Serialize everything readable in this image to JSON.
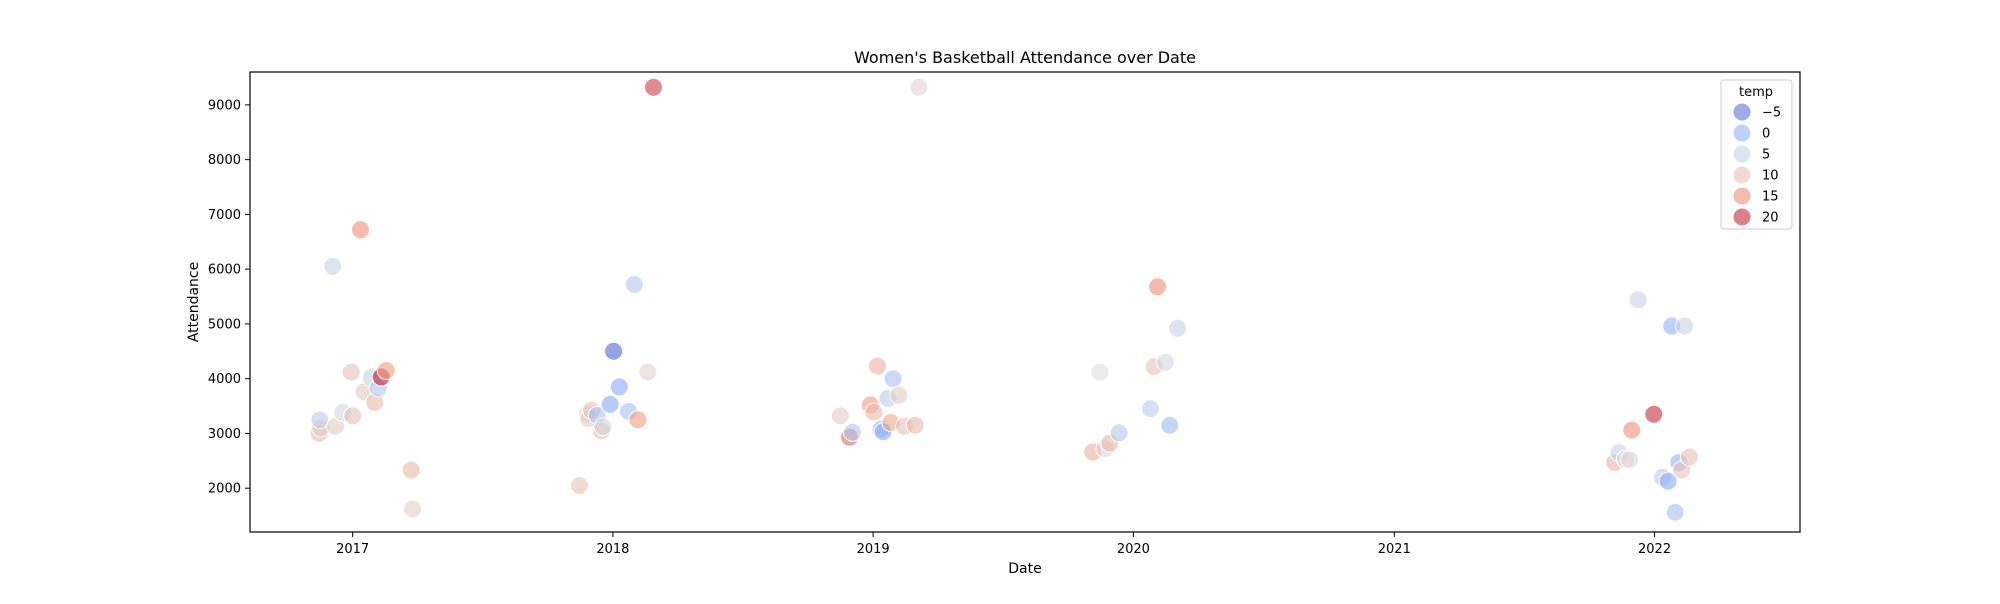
{
  "chart_data": {
    "type": "scatter",
    "title": "Women's Basketball Attendance over Date",
    "xlabel": "Date",
    "ylabel": "Attendance",
    "xlim": [
      "2016-08-10",
      "2022-07-24"
    ],
    "ylim": [
      1200,
      9600
    ],
    "x_ticks": [
      "2017",
      "2018",
      "2019",
      "2020",
      "2021",
      "2022"
    ],
    "y_ticks": [
      2000,
      3000,
      4000,
      5000,
      6000,
      7000,
      8000,
      9000
    ],
    "grid": false,
    "legend": {
      "title": "temp",
      "placement": "top-right",
      "entries": [
        {
          "label": "−5",
          "value": -5
        },
        {
          "label": "0",
          "value": 0
        },
        {
          "label": "5",
          "value": 5
        },
        {
          "label": "10",
          "value": 10
        },
        {
          "label": "15",
          "value": 15
        },
        {
          "label": "20",
          "value": 20
        }
      ]
    },
    "colormap": "coolwarm",
    "hue_range": [
      -8,
      22
    ],
    "points": [
      {
        "date": "2016-11-15",
        "attendance": 3000,
        "temp": 11
      },
      {
        "date": "2016-11-17",
        "attendance": 3100,
        "temp": 9
      },
      {
        "date": "2016-11-16",
        "attendance": 3250,
        "temp": 4
      },
      {
        "date": "2016-12-04",
        "attendance": 6050,
        "temp": 5
      },
      {
        "date": "2016-12-08",
        "attendance": 3130,
        "temp": 9
      },
      {
        "date": "2016-12-18",
        "attendance": 3380,
        "temp": 6
      },
      {
        "date": "2016-12-30",
        "attendance": 4120,
        "temp": 10
      },
      {
        "date": "2017-01-01",
        "attendance": 3320,
        "temp": 10
      },
      {
        "date": "2017-01-12",
        "attendance": 6720,
        "temp": 15
      },
      {
        "date": "2017-01-17",
        "attendance": 3760,
        "temp": 9
      },
      {
        "date": "2017-01-27",
        "attendance": 4020,
        "temp": 5
      },
      {
        "date": "2017-02-01",
        "attendance": 3570,
        "temp": 11
      },
      {
        "date": "2017-02-06",
        "attendance": 3830,
        "temp": 3
      },
      {
        "date": "2017-02-10",
        "attendance": 4030,
        "temp": 21
      },
      {
        "date": "2017-02-17",
        "attendance": 4150,
        "temp": 14
      },
      {
        "date": "2017-03-24",
        "attendance": 2330,
        "temp": 11
      },
      {
        "date": "2017-03-26",
        "attendance": 1620,
        "temp": 9
      },
      {
        "date": "2017-11-15",
        "attendance": 2050,
        "temp": 10
      },
      {
        "date": "2017-11-26",
        "attendance": 3350,
        "temp": 8
      },
      {
        "date": "2017-11-28",
        "attendance": 3270,
        "temp": 9
      },
      {
        "date": "2017-12-02",
        "attendance": 3420,
        "temp": 10
      },
      {
        "date": "2017-12-10",
        "attendance": 3330,
        "temp": 2
      },
      {
        "date": "2017-12-16",
        "attendance": 3050,
        "temp": 11
      },
      {
        "date": "2017-12-18",
        "attendance": 3120,
        "temp": 6
      },
      {
        "date": "2017-12-28",
        "attendance": 3530,
        "temp": -1
      },
      {
        "date": "2018-01-02",
        "attendance": 4500,
        "temp": -6
      },
      {
        "date": "2018-01-10",
        "attendance": 3850,
        "temp": -1
      },
      {
        "date": "2018-01-23",
        "attendance": 3400,
        "temp": 2
      },
      {
        "date": "2018-01-31",
        "attendance": 5720,
        "temp": 3
      },
      {
        "date": "2018-02-05",
        "attendance": 3250,
        "temp": 14
      },
      {
        "date": "2018-02-19",
        "attendance": 4120,
        "temp": 8
      },
      {
        "date": "2018-02-27",
        "attendance": 9320,
        "temp": 19
      },
      {
        "date": "2018-11-16",
        "attendance": 3320,
        "temp": 9
      },
      {
        "date": "2018-11-29",
        "attendance": 2930,
        "temp": 17
      },
      {
        "date": "2018-12-03",
        "attendance": 3020,
        "temp": 3
      },
      {
        "date": "2018-12-28",
        "attendance": 3520,
        "temp": 14
      },
      {
        "date": "2019-01-02",
        "attendance": 3390,
        "temp": 11
      },
      {
        "date": "2019-01-07",
        "attendance": 4230,
        "temp": 12
      },
      {
        "date": "2019-01-12",
        "attendance": 3080,
        "temp": 1
      },
      {
        "date": "2019-01-15",
        "attendance": 3030,
        "temp": -1
      },
      {
        "date": "2019-01-22",
        "attendance": 3640,
        "temp": 4
      },
      {
        "date": "2019-01-26",
        "attendance": 3200,
        "temp": 13
      },
      {
        "date": "2019-01-29",
        "attendance": 4000,
        "temp": 2
      },
      {
        "date": "2019-02-06",
        "attendance": 3700,
        "temp": 9
      },
      {
        "date": "2019-02-14",
        "attendance": 3130,
        "temp": 10
      },
      {
        "date": "2019-03-01",
        "attendance": 3150,
        "temp": 11
      },
      {
        "date": "2019-03-06",
        "attendance": 9320,
        "temp": 8
      },
      {
        "date": "2019-11-05",
        "attendance": 2660,
        "temp": 12
      },
      {
        "date": "2019-11-15",
        "attendance": 4120,
        "temp": 7
      },
      {
        "date": "2019-11-22",
        "attendance": 2720,
        "temp": 8
      },
      {
        "date": "2019-11-29",
        "attendance": 2820,
        "temp": 11
      },
      {
        "date": "2019-12-12",
        "attendance": 3010,
        "temp": 3
      },
      {
        "date": "2020-01-25",
        "attendance": 3450,
        "temp": 4
      },
      {
        "date": "2020-01-30",
        "attendance": 4220,
        "temp": 10
      },
      {
        "date": "2020-02-04",
        "attendance": 5680,
        "temp": 15
      },
      {
        "date": "2020-02-15",
        "attendance": 4300,
        "temp": 6
      },
      {
        "date": "2020-02-21",
        "attendance": 3150,
        "temp": 1
      },
      {
        "date": "2020-03-03",
        "attendance": 4920,
        "temp": 5
      },
      {
        "date": "2021-11-06",
        "attendance": 2470,
        "temp": 11
      },
      {
        "date": "2021-11-12",
        "attendance": 2650,
        "temp": 5
      },
      {
        "date": "2021-11-21",
        "attendance": 2530,
        "temp": 7
      },
      {
        "date": "2021-11-27",
        "attendance": 2520,
        "temp": 8
      },
      {
        "date": "2021-11-30",
        "attendance": 3060,
        "temp": 15
      },
      {
        "date": "2021-12-09",
        "attendance": 5440,
        "temp": 5
      },
      {
        "date": "2021-12-31",
        "attendance": 3350,
        "temp": 20
      },
      {
        "date": "2022-01-12",
        "attendance": 2200,
        "temp": 4
      },
      {
        "date": "2022-01-20",
        "attendance": 2130,
        "temp": -1
      },
      {
        "date": "2022-01-25",
        "attendance": 4960,
        "temp": 0
      },
      {
        "date": "2022-01-30",
        "attendance": 1560,
        "temp": 2
      },
      {
        "date": "2022-02-04",
        "attendance": 2470,
        "temp": 0
      },
      {
        "date": "2022-02-08",
        "attendance": 2330,
        "temp": 10
      },
      {
        "date": "2022-02-12",
        "attendance": 4960,
        "temp": 5
      },
      {
        "date": "2022-02-19",
        "attendance": 2570,
        "temp": 10
      }
    ]
  }
}
